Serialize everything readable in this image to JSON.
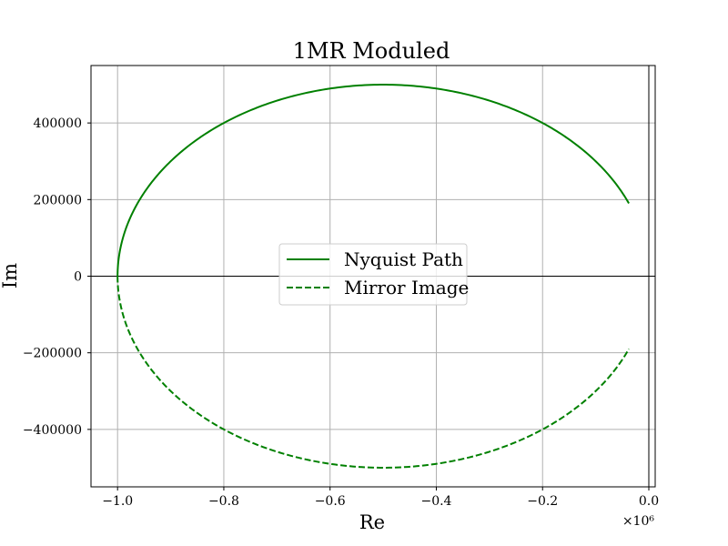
{
  "chart_data": {
    "type": "line",
    "title": "1MR Moduled",
    "xlabel": "Re",
    "ylabel": "Im",
    "x_scale_label": "×10⁶",
    "xlim": [
      -1.05,
      0.012
    ],
    "ylim": [
      -550000,
      550000
    ],
    "x_ticks": [
      -1.0,
      -0.8,
      -0.6,
      -0.4,
      -0.2,
      0.0
    ],
    "x_tick_labels": [
      "−1.0",
      "−0.8",
      "−0.6",
      "−0.4",
      "−0.2",
      "0.0"
    ],
    "y_ticks": [
      -400000,
      -200000,
      0,
      200000,
      400000
    ],
    "y_tick_labels": [
      "−400000",
      "−200000",
      "0",
      "200000",
      "400000"
    ],
    "grid": true,
    "legend_position": "center-right",
    "curve": {
      "center_re": -0.5,
      "radius_re": 0.5,
      "radius_im": 500000,
      "end_re": -0.0375
    },
    "series": [
      {
        "name": "Nyquist Path",
        "color": "#008000",
        "style": "solid",
        "sign": 1
      },
      {
        "name": "Mirror Image",
        "color": "#008000",
        "style": "dashed",
        "sign": -1
      }
    ]
  }
}
